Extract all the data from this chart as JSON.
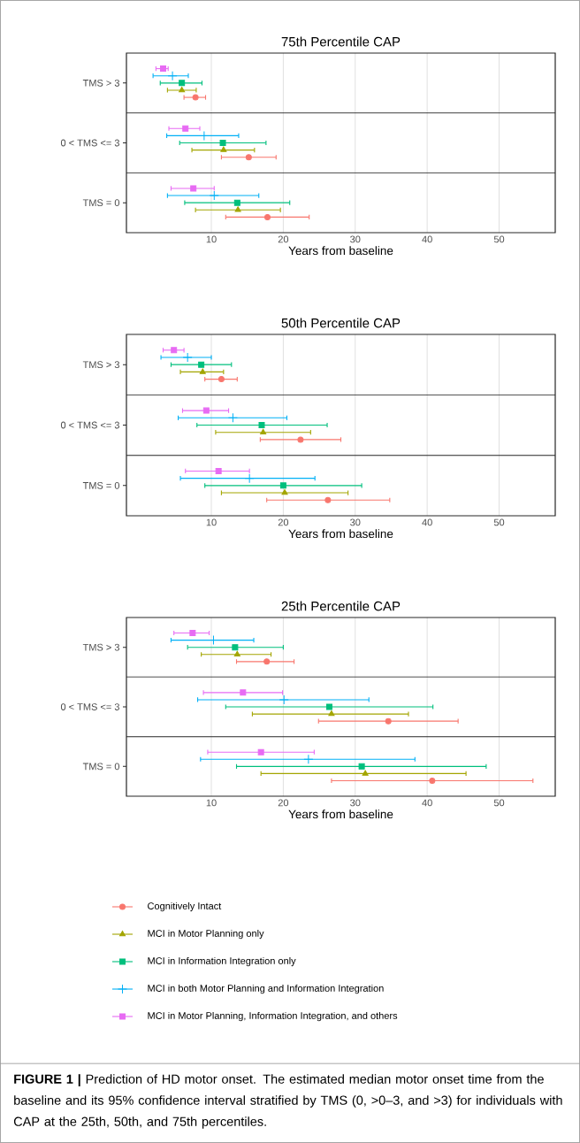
{
  "chart_data": [
    {
      "type": "scatter",
      "orientation": "horizontal",
      "title": "75th Percentile CAP",
      "xlabel": "Years from baseline",
      "categories": [
        "TMS > 3",
        "0 < TMS <= 3",
        "TMS = 0"
      ],
      "xlim": [
        -1.8,
        57.8
      ],
      "xticks": [
        10,
        20,
        30,
        40,
        50
      ],
      "grid": "x",
      "series": [
        {
          "color": "#f8766d",
          "marker": "circle",
          "values": [
            7.8,
            15.2,
            17.8
          ],
          "errors": [
            [
              6.2,
              9.2
            ],
            [
              11.4,
              19.0
            ],
            [
              12.0,
              23.6
            ]
          ]
        },
        {
          "color": "#a3a500",
          "marker": "triangle",
          "values": [
            5.9,
            11.7,
            13.7
          ],
          "errors": [
            [
              3.9,
              7.9
            ],
            [
              7.3,
              16.0
            ],
            [
              7.8,
              19.6
            ]
          ]
        },
        {
          "color": "#00bf7d",
          "marker": "square",
          "values": [
            5.9,
            11.6,
            13.6
          ],
          "errors": [
            [
              2.9,
              8.7
            ],
            [
              5.6,
              17.6
            ],
            [
              6.3,
              20.9
            ]
          ]
        },
        {
          "color": "#00b0f6",
          "marker": "cross",
          "values": [
            4.6,
            9.0,
            10.4
          ],
          "errors": [
            [
              1.9,
              6.8
            ],
            [
              3.8,
              13.8
            ],
            [
              3.9,
              16.6
            ]
          ]
        },
        {
          "color": "#e76bf3",
          "marker": "square",
          "values": [
            3.3,
            6.4,
            7.5
          ],
          "errors": [
            [
              2.3,
              4.0
            ],
            [
              4.1,
              8.4
            ],
            [
              4.4,
              10.4
            ]
          ]
        }
      ]
    },
    {
      "type": "scatter",
      "orientation": "horizontal",
      "title": "50th Percentile CAP",
      "xlabel": "Years from baseline",
      "categories": [
        "TMS > 3",
        "0 < TMS <= 3",
        "TMS = 0"
      ],
      "xlim": [
        -1.8,
        57.8
      ],
      "xticks": [
        10,
        20,
        30,
        40,
        50
      ],
      "grid": "x",
      "series": [
        {
          "color": "#f8766d",
          "marker": "circle",
          "values": [
            11.4,
            22.4,
            26.2
          ],
          "errors": [
            [
              9.1,
              13.6
            ],
            [
              16.8,
              28.0
            ],
            [
              17.7,
              34.8
            ]
          ]
        },
        {
          "color": "#a3a500",
          "marker": "triangle",
          "values": [
            8.8,
            17.2,
            20.2
          ],
          "errors": [
            [
              5.7,
              11.7
            ],
            [
              10.6,
              23.8
            ],
            [
              11.4,
              29.0
            ]
          ]
        },
        {
          "color": "#00bf7d",
          "marker": "square",
          "values": [
            8.6,
            17.0,
            20.0
          ],
          "errors": [
            [
              4.4,
              12.8
            ],
            [
              8.0,
              26.1
            ],
            [
              9.1,
              30.9
            ]
          ]
        },
        {
          "color": "#00b0f6",
          "marker": "cross",
          "values": [
            6.7,
            13.0,
            15.3
          ],
          "errors": [
            [
              3.0,
              10.0
            ],
            [
              5.4,
              20.5
            ],
            [
              5.7,
              24.4
            ]
          ]
        },
        {
          "color": "#e76bf3",
          "marker": "square",
          "values": [
            4.8,
            9.3,
            11.0
          ],
          "errors": [
            [
              3.3,
              6.2
            ],
            [
              6.0,
              12.4
            ],
            [
              6.4,
              15.3
            ]
          ]
        }
      ]
    },
    {
      "type": "scatter",
      "orientation": "horizontal",
      "title": "25th Percentile CAP",
      "xlabel": "Years from baseline",
      "categories": [
        "TMS > 3",
        "0 < TMS <= 3",
        "TMS = 0"
      ],
      "xlim": [
        -1.8,
        57.8
      ],
      "xticks": [
        10,
        20,
        30,
        40,
        50
      ],
      "grid": "x",
      "legend": "bottom",
      "annotations": [
        "**FIGURE 1 |** Prediction of HD motor onset. The estimated median motor onset time from the baseline and its 95% confidence interval stratified by TMS (0, >0–3, and >3) for individuals with CAP at the 25th, 50th, and 75th percentiles."
      ],
      "series": [
        {
          "name": "Cognitively Intact",
          "color": "#f8766d",
          "marker": "circle",
          "values": [
            17.7,
            34.6,
            40.7
          ],
          "errors": [
            [
              13.5,
              21.5
            ],
            [
              24.9,
              44.3
            ],
            [
              26.7,
              54.7
            ]
          ]
        },
        {
          "name": "MCI in Motor Planning only",
          "color": "#a3a500",
          "marker": "triangle",
          "values": [
            13.6,
            26.7,
            31.4
          ],
          "errors": [
            [
              8.6,
              18.3
            ],
            [
              15.7,
              37.4
            ],
            [
              16.9,
              45.4
            ]
          ]
        },
        {
          "name": "MCI in Information Integration only",
          "color": "#00bf7d",
          "marker": "square",
          "values": [
            13.3,
            26.4,
            30.9
          ],
          "errors": [
            [
              6.7,
              20.0
            ],
            [
              12.0,
              40.8
            ],
            [
              13.5,
              48.2
            ]
          ]
        },
        {
          "name": "MCI in both Motor Planning and Information Integration",
          "color": "#00b0f6",
          "marker": "cross",
          "values": [
            10.3,
            20.1,
            23.5
          ],
          "errors": [
            [
              4.4,
              15.9
            ],
            [
              8.1,
              31.9
            ],
            [
              8.5,
              38.3
            ]
          ]
        },
        {
          "name": "MCI in Motor Planning, Information Integration, and others",
          "color": "#e76bf3",
          "marker": "square",
          "values": [
            7.4,
            14.4,
            16.9
          ],
          "errors": [
            [
              4.8,
              9.7
            ],
            [
              8.9,
              19.9
            ],
            [
              9.5,
              24.3
            ]
          ]
        }
      ]
    }
  ]
}
